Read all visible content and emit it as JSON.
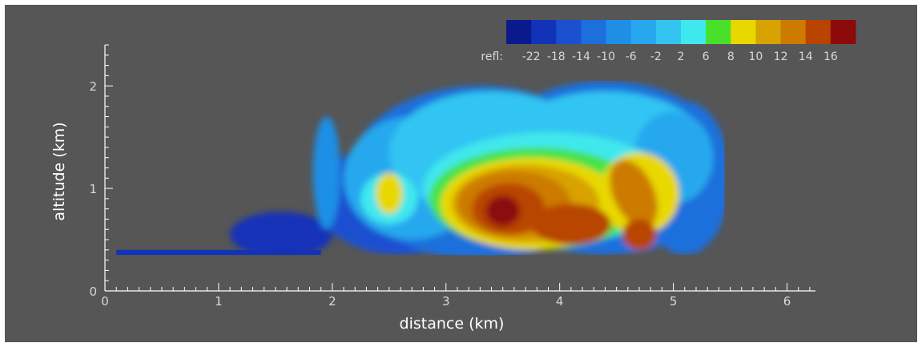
{
  "chart_data": {
    "type": "heatmap",
    "title": "",
    "xlabel": "distance (km)",
    "ylabel": "altitude (km)",
    "xlim": [
      0,
      6.25
    ],
    "ylim": [
      0,
      2.4
    ],
    "x_ticks": [
      "0",
      "1",
      "2",
      "3",
      "4",
      "5",
      "6"
    ],
    "y_ticks": [
      "0",
      "1",
      "2"
    ],
    "grid": false,
    "colorbar": {
      "label": "refl:",
      "placement": "top-right",
      "ticks": [
        "-22",
        "-18",
        "-14",
        "-10",
        "-6",
        "-2",
        "2",
        "6",
        "8",
        "10",
        "12",
        "14",
        "16"
      ],
      "colors": [
        "#0a1a8c",
        "#1232b8",
        "#1a4fd0",
        "#1c70dc",
        "#1f8fe6",
        "#27a8ee",
        "#33c4f2",
        "#3fe8ee",
        "#49e02a",
        "#e8d800",
        "#d8a200",
        "#cc7a00",
        "#b84400",
        "#8c0a0a"
      ]
    },
    "description_levels": "color encodes radar reflectivity; echo spans ~0.1–5.5 km distance, ~0.35–2.05 km altitude, maximum ~16 near 3.5–4 km distance at ~0.8 km altitude"
  },
  "colors": {
    "background": "#565656",
    "text": "#ffffff"
  }
}
